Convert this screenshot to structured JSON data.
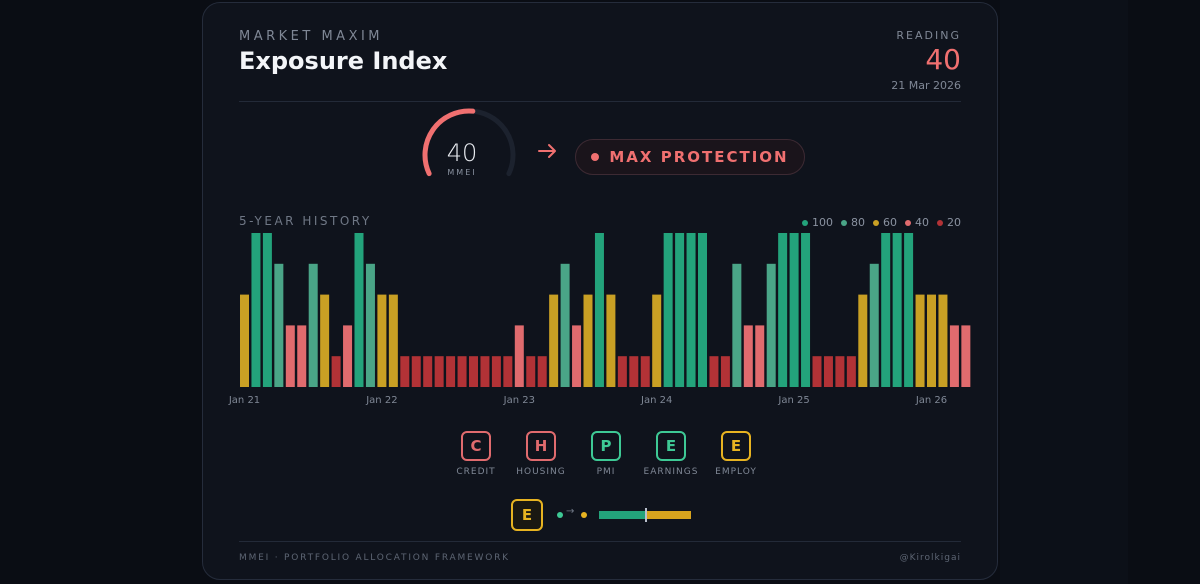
{
  "header": {
    "brand": "MARKET MAXIM",
    "title": "Exposure Index",
    "reading_label": "READING",
    "reading_value": "40",
    "reading_date": "21 Mar 2026"
  },
  "gauge": {
    "value": "40",
    "label": "MMEI",
    "fraction": 0.4,
    "color": "#f07070",
    "track_color": "#1c222e"
  },
  "status": {
    "label": "MAX PROTECTION",
    "color": "#f07070"
  },
  "history": {
    "label": "5-YEAR HISTORY",
    "legend": [
      {
        "label": "100",
        "color": "#23a37b"
      },
      {
        "label": "80",
        "color": "#4aa587"
      },
      {
        "label": "60",
        "color": "#c9a024"
      },
      {
        "label": "40",
        "color": "#e06b6e"
      },
      {
        "label": "20",
        "color": "#b23236"
      }
    ]
  },
  "chart_data": {
    "type": "bar",
    "title": "5-YEAR HISTORY",
    "xlabel": "",
    "ylabel": "",
    "ylim": [
      0,
      100
    ],
    "tick_labels": [
      "Jan 21",
      "Jan 22",
      "Jan 23",
      "Jan 24",
      "Jan 25",
      "Jan 26"
    ],
    "tick_indices": [
      0,
      12,
      24,
      36,
      48,
      60
    ],
    "values": [
      60,
      100,
      100,
      80,
      40,
      40,
      80,
      60,
      20,
      40,
      100,
      80,
      60,
      60,
      20,
      20,
      20,
      20,
      20,
      20,
      20,
      20,
      20,
      20,
      40,
      20,
      20,
      60,
      80,
      40,
      60,
      100,
      60,
      20,
      20,
      20,
      60,
      100,
      100,
      100,
      100,
      20,
      20,
      80,
      40,
      40,
      80,
      100,
      100,
      100,
      20,
      20,
      20,
      20,
      60,
      80,
      100,
      100,
      100,
      60,
      60,
      60,
      40,
      40
    ],
    "colors": {
      "100": "#23a37b",
      "80": "#4aa587",
      "60": "#c9a024",
      "40": "#e06b6e",
      "20": "#b23236"
    }
  },
  "factors": [
    {
      "letter": "C",
      "label": "CREDIT",
      "color": "#e06b6e"
    },
    {
      "letter": "H",
      "label": "HOUSING",
      "color": "#e06b6e"
    },
    {
      "letter": "P",
      "label": "PMI",
      "color": "#3ec995"
    },
    {
      "letter": "E",
      "label": "EARNINGS",
      "color": "#3ec995"
    },
    {
      "letter": "E",
      "label": "EMPLOY",
      "color": "#e7b321"
    }
  ],
  "transition": {
    "badge_letter": "E",
    "arrow": "→",
    "from_color": "#3ec995",
    "to_color": "#e7b321",
    "bar_split": 0.5
  },
  "footer": {
    "left": "MMEI · PORTFOLIO ALLOCATION FRAMEWORK",
    "right": "@Kirolkigai"
  }
}
